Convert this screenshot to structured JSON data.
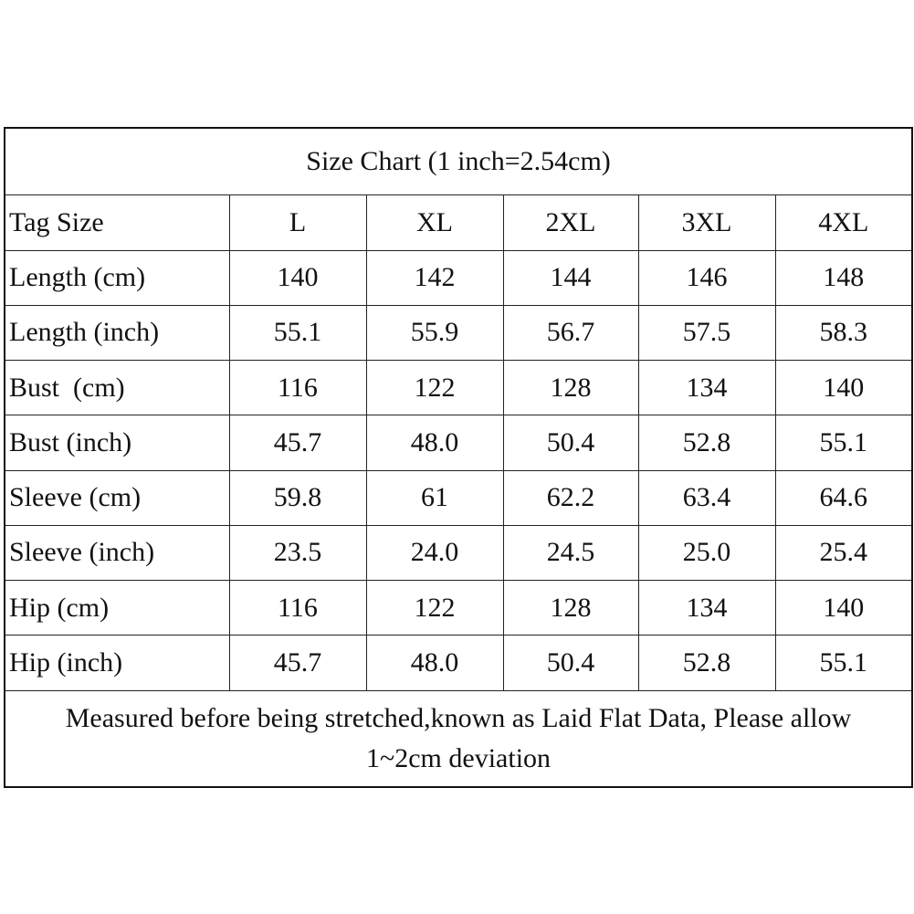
{
  "title": "Size Chart (1 inch=2.54cm)",
  "header": {
    "label": "Tag Size",
    "sizes": [
      "L",
      "XL",
      "2XL",
      "3XL",
      "4XL"
    ]
  },
  "rows": [
    {
      "label": "Length (cm)",
      "values": [
        "140",
        "142",
        "144",
        "146",
        "148"
      ]
    },
    {
      "label": "Length (inch)",
      "values": [
        "55.1",
        "55.9",
        "56.7",
        "57.5",
        "58.3"
      ]
    },
    {
      "label": "Bust  (cm)",
      "values": [
        "116",
        "122",
        "128",
        "134",
        "140"
      ]
    },
    {
      "label": "Bust (inch)",
      "values": [
        "45.7",
        "48.0",
        "50.4",
        "52.8",
        "55.1"
      ]
    },
    {
      "label": "Sleeve (cm)",
      "values": [
        "59.8",
        "61",
        "62.2",
        "63.4",
        "64.6"
      ]
    },
    {
      "label": "Sleeve (inch)",
      "values": [
        "23.5",
        "24.0",
        "24.5",
        "25.0",
        "25.4"
      ]
    },
    {
      "label": "Hip (cm)",
      "values": [
        "116",
        "122",
        "128",
        "134",
        "140"
      ]
    },
    {
      "label": "Hip (inch)",
      "values": [
        "45.7",
        "48.0",
        "50.4",
        "52.8",
        "55.1"
      ]
    }
  ],
  "note": {
    "line1": "Measured before being stretched,known as Laid Flat Data, Please allow",
    "line2": "1~2cm deviation"
  }
}
